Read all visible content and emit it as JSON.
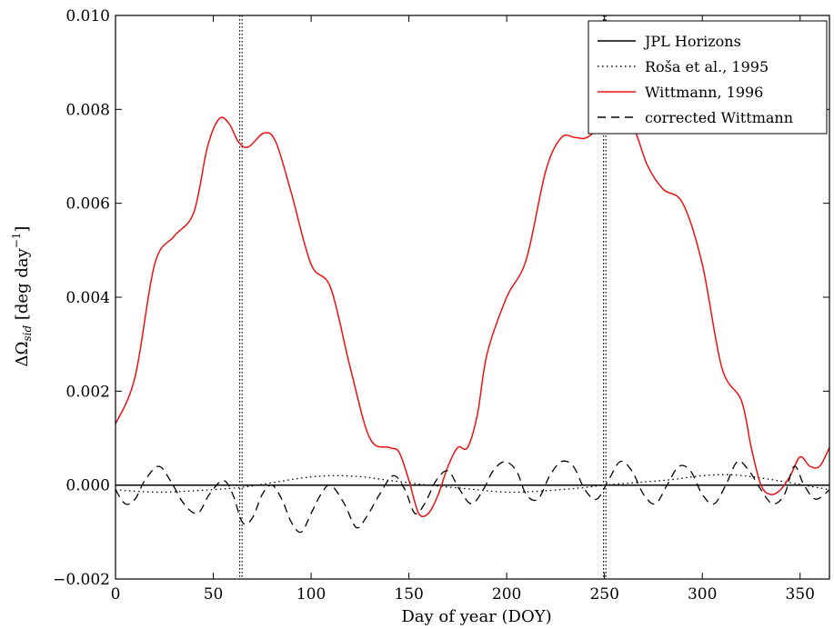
{
  "chart_data": {
    "type": "line",
    "title": "",
    "xlabel": "Day of year (DOY)",
    "ylabel_main": "ΔΩ",
    "ylabel_sub": "sid",
    "ylabel_unit": " [deg day",
    "ylabel_sup": "−1",
    "ylabel_close": "]",
    "xlim": [
      0,
      365
    ],
    "ylim": [
      -0.002,
      0.01
    ],
    "x_ticks": [
      0,
      50,
      100,
      150,
      200,
      250,
      300,
      350
    ],
    "x_tick_labels": [
      "0",
      "50",
      "100",
      "150",
      "200",
      "250",
      "300",
      "350"
    ],
    "y_ticks": [
      -0.002,
      0.0,
      0.002,
      0.004,
      0.006,
      0.008,
      0.01
    ],
    "y_tick_labels": [
      "−0.002",
      "0.000",
      "0.002",
      "0.004",
      "0.006",
      "0.008",
      "0.010"
    ],
    "grid": false,
    "legend_position": "top-right",
    "vertical_lines_dotted": [
      63.5,
      64.7,
      249.5,
      250.7
    ],
    "series": [
      {
        "name": "JPL Horizons",
        "style": "solid",
        "color": "#000000",
        "x": [
          0,
          365
        ],
        "y": [
          0.0,
          0.0
        ]
      },
      {
        "name": "Roša et al., 1995",
        "style": "dotted",
        "color": "#000000",
        "x": [
          0,
          20,
          40,
          64,
          80,
          95,
          110,
          125,
          140,
          160,
          180,
          200,
          220,
          240,
          250,
          265,
          285,
          300,
          315,
          330,
          345,
          365
        ],
        "y": [
          -0.0001,
          -0.00015,
          -0.00012,
          -5e-05,
          5e-05,
          0.00015,
          0.0002,
          0.00018,
          0.0001,
          0.0,
          -8e-05,
          -0.00015,
          -0.00012,
          -5e-05,
          0.0,
          5e-05,
          0.00012,
          0.0002,
          0.00022,
          0.00015,
          5e-05,
          -0.0001
        ]
      },
      {
        "name": "Wittmann, 1996",
        "style": "solid",
        "color": "#ee1111",
        "x": [
          0,
          10,
          20,
          30,
          40,
          47,
          53,
          58,
          63,
          68,
          76,
          82,
          90,
          100,
          110,
          120,
          130,
          140,
          145,
          150,
          155,
          160,
          165,
          170,
          175,
          180,
          185,
          190,
          200,
          210,
          220,
          228,
          235,
          241,
          250,
          258,
          265,
          272,
          280,
          290,
          300,
          310,
          320,
          325,
          330,
          335,
          340,
          345,
          350,
          355,
          360,
          365
        ],
        "y": [
          0.0013,
          0.0023,
          0.0047,
          0.0053,
          0.0058,
          0.0072,
          0.0078,
          0.0077,
          0.0073,
          0.0072,
          0.0075,
          0.0073,
          0.0062,
          0.0047,
          0.0042,
          0.0025,
          0.001,
          0.0008,
          0.0007,
          0.0001,
          -0.0006,
          -0.0006,
          -0.0002,
          0.0004,
          0.0008,
          0.0008,
          0.0015,
          0.0028,
          0.004,
          0.0048,
          0.0067,
          0.0074,
          0.0074,
          0.0074,
          0.0077,
          0.0079,
          0.0076,
          0.0068,
          0.0063,
          0.006,
          0.0047,
          0.0025,
          0.0018,
          0.0008,
          0.0,
          -0.0002,
          -0.0001,
          0.0002,
          0.0006,
          0.0004,
          0.0004,
          0.0008
        ]
      },
      {
        "name": "corrected Wittmann",
        "style": "dashed",
        "color": "#000000",
        "x": [
          0,
          5,
          10,
          15,
          22,
          28,
          35,
          42,
          48,
          55,
          60,
          65,
          70,
          75,
          80,
          85,
          90,
          95,
          100,
          105,
          110,
          117,
          123,
          128,
          135,
          142,
          148,
          153,
          158,
          164,
          170,
          176,
          182,
          188,
          193,
          199,
          205,
          210,
          216,
          222,
          228,
          234,
          240,
          246,
          252,
          258,
          264,
          270,
          276,
          282,
          288,
          294,
          300,
          306,
          312,
          318,
          324,
          330,
          336,
          342,
          347,
          352,
          358,
          365
        ],
        "y": [
          -0.0001,
          -0.0004,
          -0.0003,
          0.0001,
          0.0004,
          0.0001,
          -0.0004,
          -0.0006,
          -0.0002,
          0.0001,
          -0.0002,
          -0.0008,
          -0.0007,
          -0.0002,
          0.0,
          -0.0003,
          -0.0008,
          -0.001,
          -0.0006,
          -0.0002,
          0.0,
          -0.0004,
          -0.0009,
          -0.0007,
          -0.0002,
          0.0002,
          -0.0001,
          -0.0006,
          -0.0004,
          0.0001,
          0.0003,
          -0.0001,
          -0.0004,
          -0.0001,
          0.0003,
          0.0005,
          0.0003,
          -0.0002,
          -0.0003,
          0.0002,
          0.0005,
          0.0004,
          -0.0001,
          -0.0003,
          0.0001,
          0.0005,
          0.0003,
          -0.0002,
          -0.0004,
          0.0,
          0.0004,
          0.0003,
          -0.0002,
          -0.0004,
          0.0,
          0.0005,
          0.0003,
          -0.0001,
          -0.0004,
          -0.0002,
          0.0004,
          0.0,
          -0.0003,
          -0.0001
        ]
      }
    ]
  }
}
